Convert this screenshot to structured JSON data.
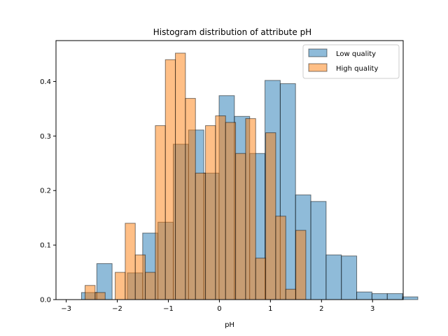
{
  "chart_data": {
    "type": "bar",
    "title": "Histogram distribution of attribute pH",
    "xlabel": "pH",
    "ylabel": "",
    "xlim": [
      -3.2,
      3.6
    ],
    "ylim": [
      0,
      0.475
    ],
    "xticks": [
      -3,
      -2,
      -1,
      0,
      1,
      2,
      3
    ],
    "yticks": [
      0.0,
      0.1,
      0.2,
      0.3,
      0.4
    ],
    "legend": {
      "placement": "top-right"
    },
    "grid": false,
    "series": [
      {
        "name": "Low quality",
        "color": "#1f77b4",
        "bin_width": 0.2994,
        "bin_start": -2.7,
        "values": [
          0.013,
          0.066,
          0.0,
          0.049,
          0.122,
          0.142,
          0.285,
          0.311,
          0.232,
          0.374,
          0.336,
          0.268,
          0.402,
          0.396,
          0.192,
          0.18,
          0.082,
          0.08,
          0.014,
          0.011,
          0.011,
          0.005
        ]
      },
      {
        "name": "High quality",
        "color": "#ff7f0e",
        "bin_width": 0.1965,
        "bin_start": -2.63,
        "values": [
          0.026,
          0.013,
          0.0,
          0.05,
          0.14,
          0.082,
          0.05,
          0.319,
          0.44,
          0.452,
          0.369,
          0.232,
          0.319,
          0.337,
          0.325,
          0.268,
          0.332,
          0.076,
          0.306,
          0.153,
          0.019,
          0.127
        ]
      }
    ]
  }
}
